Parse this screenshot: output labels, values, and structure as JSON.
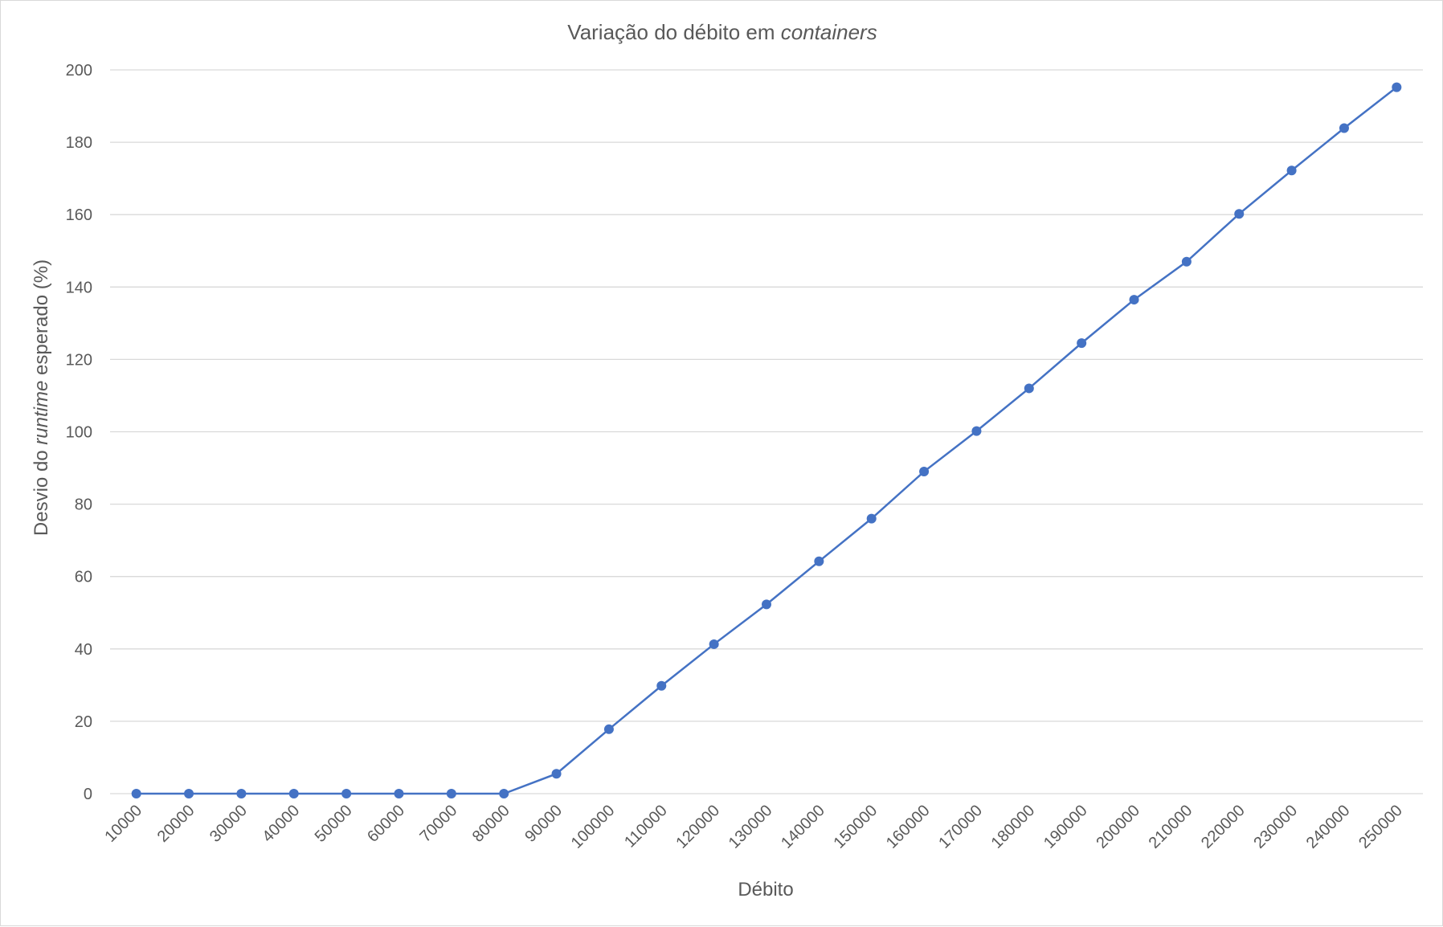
{
  "chart_data": {
    "type": "line",
    "title_parts": [
      "Variação do débito em ",
      "containers"
    ],
    "xlabel": "Débito",
    "ylabel_parts": [
      "Desvio do ",
      "runtime",
      " esperado (%)"
    ],
    "categories": [
      "10000",
      "20000",
      "30000",
      "40000",
      "50000",
      "60000",
      "70000",
      "80000",
      "90000",
      "100000",
      "110000",
      "120000",
      "130000",
      "140000",
      "150000",
      "160000",
      "170000",
      "180000",
      "190000",
      "200000",
      "210000",
      "220000",
      "230000",
      "240000",
      "250000"
    ],
    "series": [
      {
        "values": [
          0,
          0,
          0,
          0,
          0,
          0,
          0,
          0,
          5.5,
          17.8,
          29.8,
          41.3,
          52.3,
          64.2,
          76,
          89,
          100.2,
          112,
          124.5,
          136.5,
          147,
          160.2,
          172.2,
          183.9,
          195.2
        ],
        "color": "#4472c4"
      }
    ],
    "ylim": [
      0,
      200
    ],
    "yticks": [
      0,
      20,
      40,
      60,
      80,
      100,
      120,
      140,
      160,
      180,
      200
    ],
    "grid": true,
    "legend": "none"
  }
}
